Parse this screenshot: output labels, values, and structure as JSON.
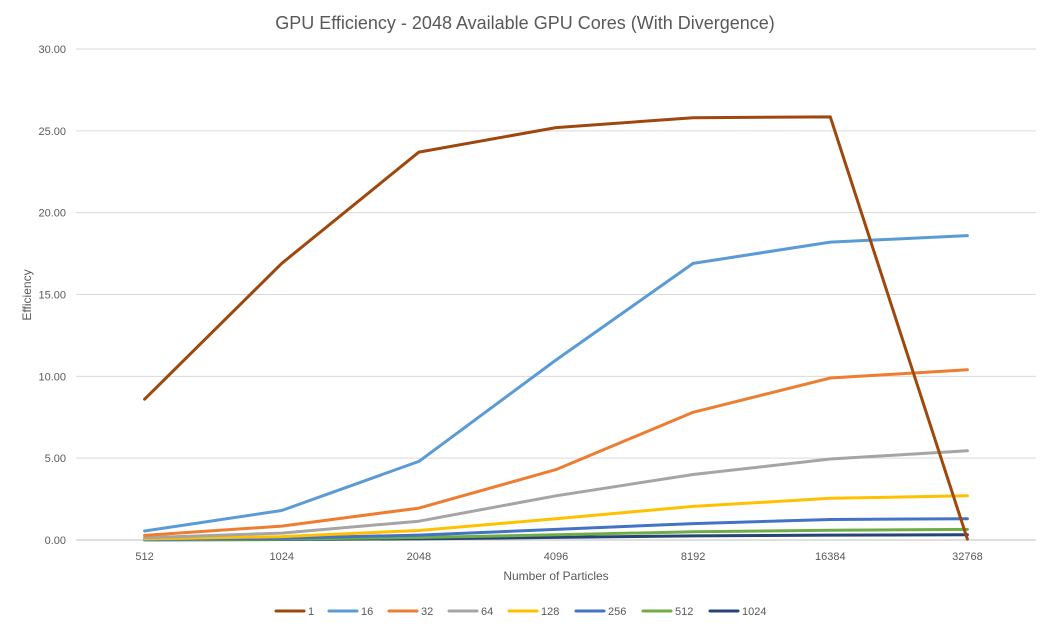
{
  "chart_data": {
    "type": "line",
    "title": "GPU Efficiency - 2048 Available GPU Cores (With Divergence)",
    "xlabel": "Number  of Particles",
    "ylabel": "Efficiency",
    "categories": [
      "512",
      "1024",
      "2048",
      "4096",
      "8192",
      "16384",
      "32768"
    ],
    "ylim": [
      0,
      30
    ],
    "yticks": [
      0,
      5,
      10,
      15,
      20,
      25,
      30
    ],
    "ytick_labels": [
      "0.00",
      "5.00",
      "10.00",
      "15.00",
      "20.00",
      "25.00",
      "30.00"
    ],
    "grid": true,
    "legend_position": "bottom",
    "series": [
      {
        "name": "1",
        "color": "#9E480E",
        "values": [
          8.6,
          16.9,
          23.7,
          25.2,
          25.8,
          25.85,
          0.05
        ]
      },
      {
        "name": "16",
        "color": "#5B9BD5",
        "values": [
          0.55,
          1.8,
          4.8,
          11.0,
          16.9,
          18.2,
          18.6
        ]
      },
      {
        "name": "32",
        "color": "#ED7D31",
        "values": [
          0.28,
          0.85,
          1.95,
          4.3,
          7.8,
          9.9,
          10.4
        ]
      },
      {
        "name": "64",
        "color": "#A5A5A5",
        "values": [
          0.14,
          0.42,
          1.15,
          2.7,
          4.0,
          4.95,
          5.45
        ]
      },
      {
        "name": "128",
        "color": "#FFC000",
        "values": [
          0.07,
          0.21,
          0.58,
          1.3,
          2.05,
          2.55,
          2.7
        ]
      },
      {
        "name": "256",
        "color": "#4472C4",
        "values": [
          0.035,
          0.11,
          0.3,
          0.65,
          1.0,
          1.25,
          1.3
        ]
      },
      {
        "name": "512",
        "color": "#70AD47",
        "values": [
          0.018,
          0.055,
          0.15,
          0.32,
          0.5,
          0.6,
          0.65
        ]
      },
      {
        "name": "1024",
        "color": "#264478",
        "values": [
          0.009,
          0.028,
          0.07,
          0.16,
          0.25,
          0.3,
          0.32
        ]
      }
    ]
  }
}
